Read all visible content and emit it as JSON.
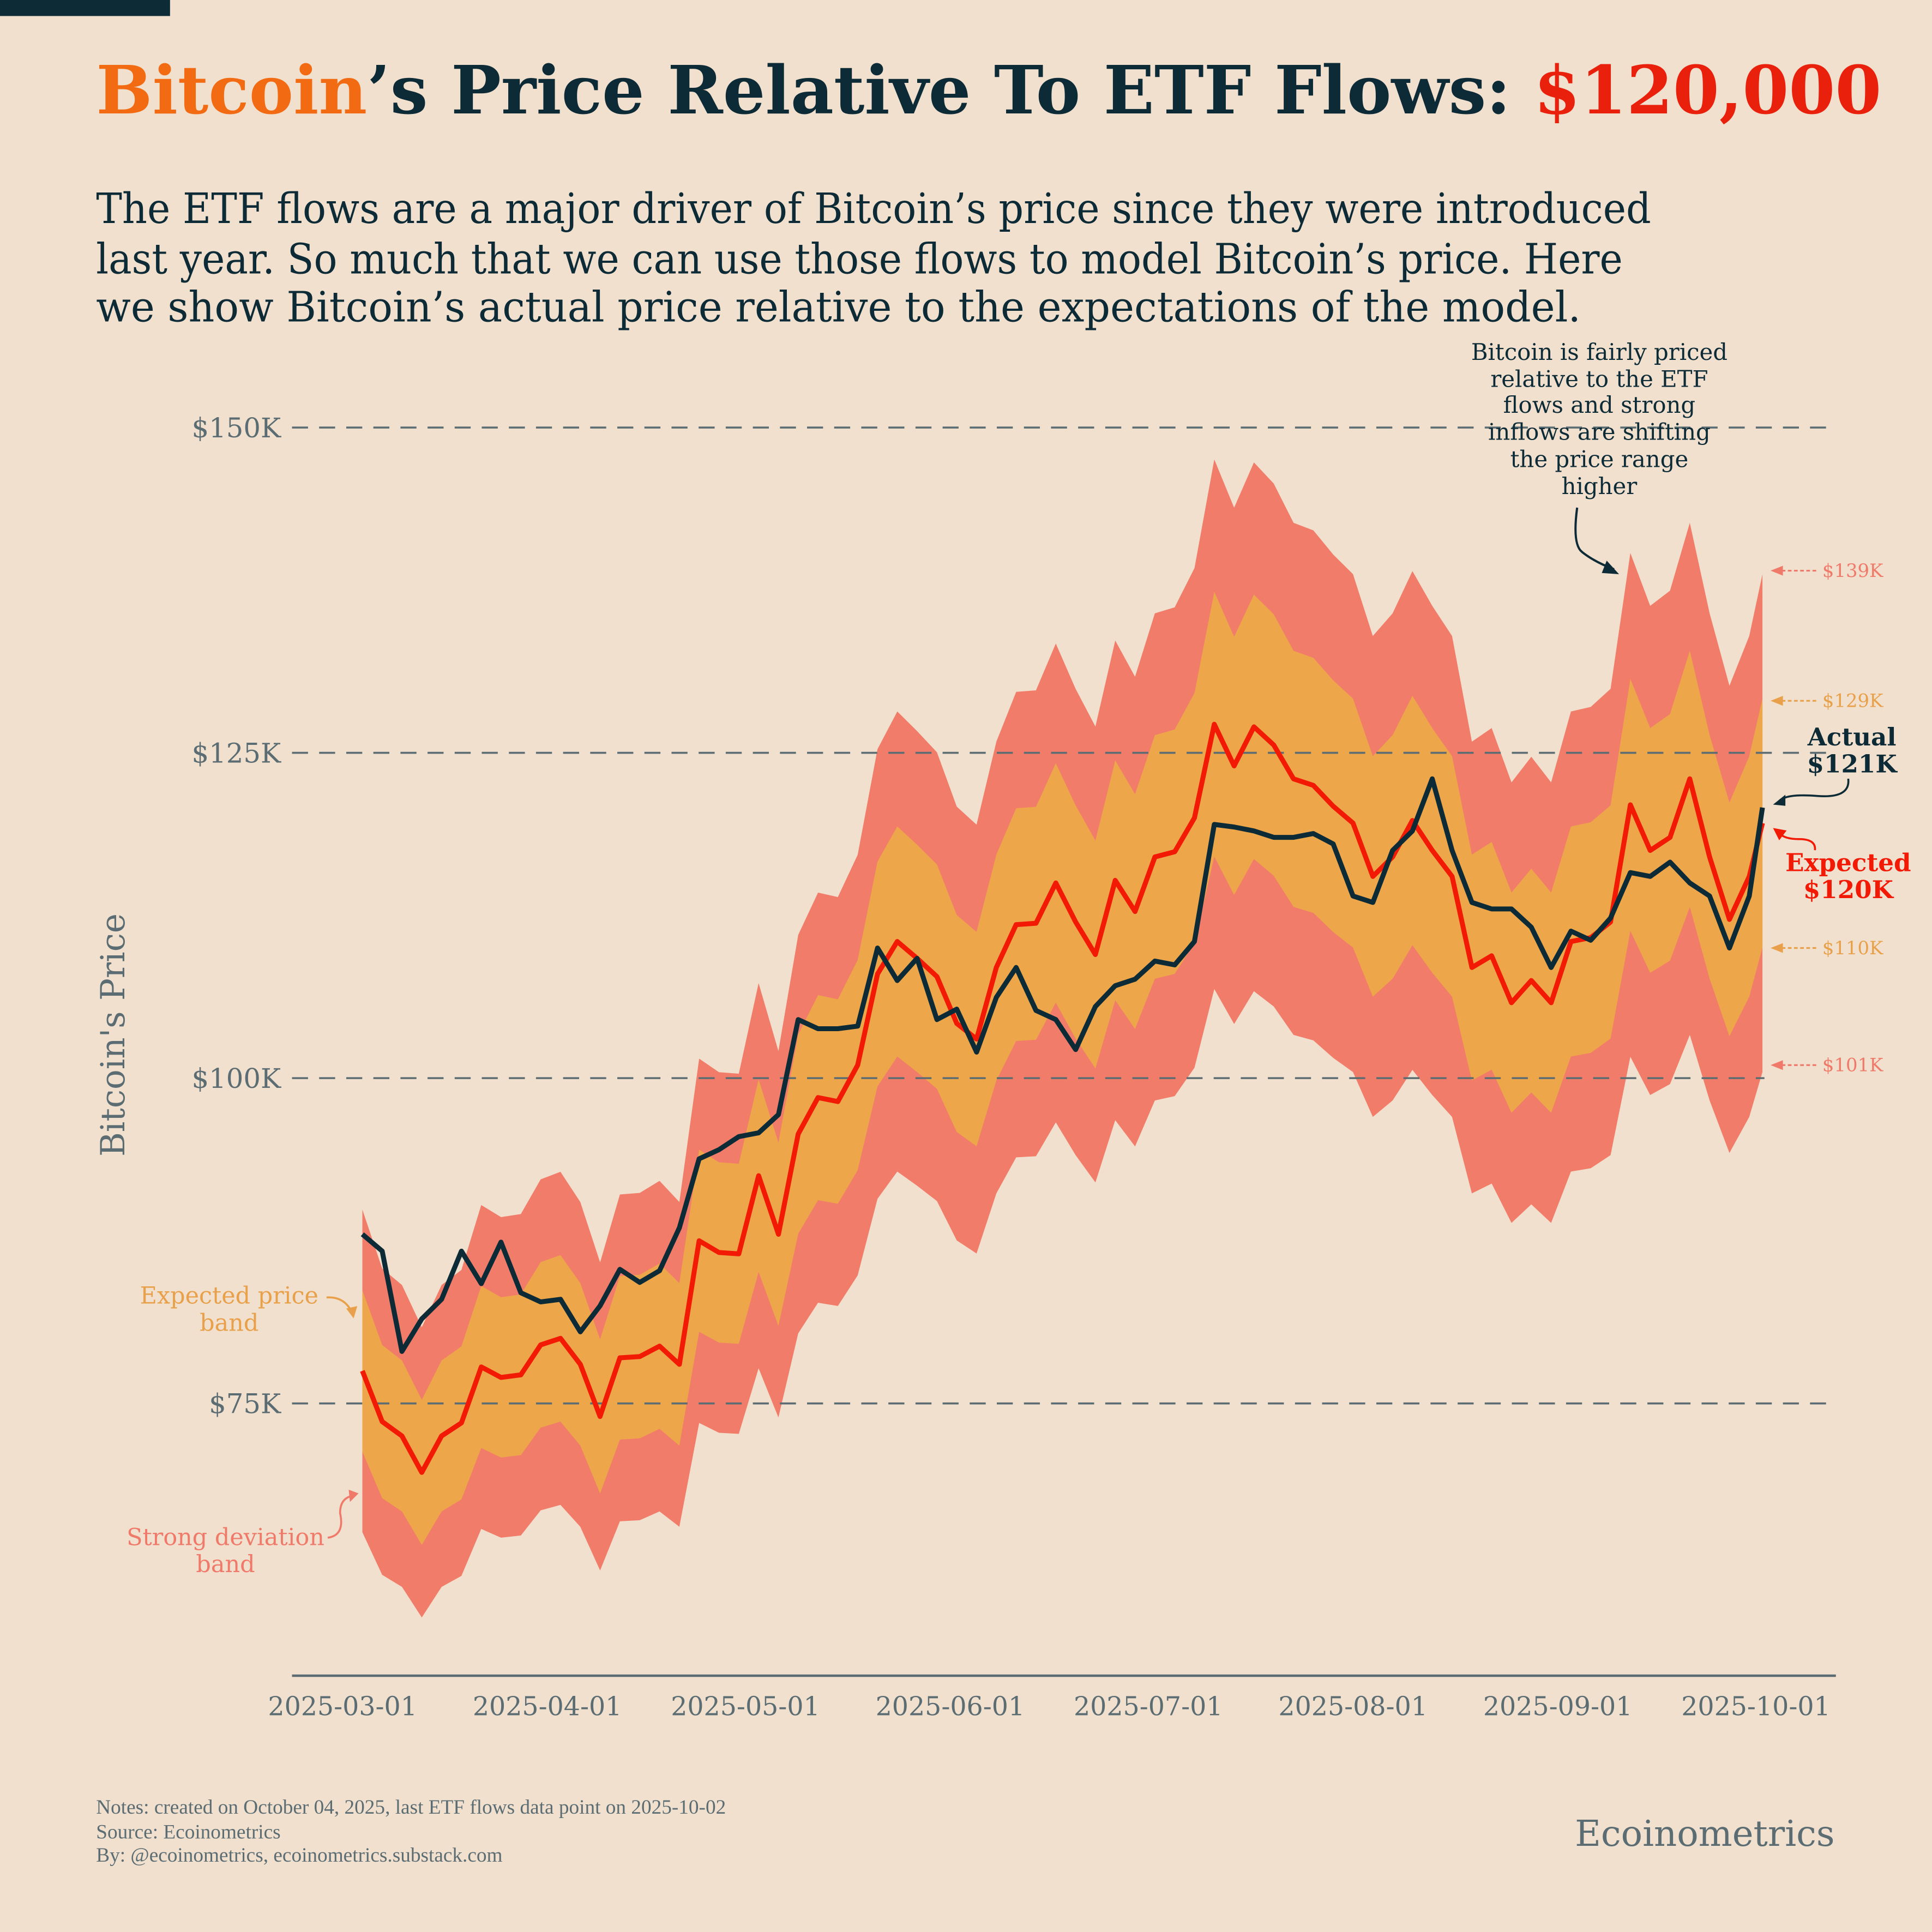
{
  "title": {
    "part1": "Bitcoin",
    "part2": "’s Price Relative To ETF Flows: ",
    "part3": "$120,000"
  },
  "subtitle": [
    "The ETF flows are a major driver of Bitcoin’s price since they were introduced",
    "last year. So much that we can use those flows to model Bitcoin’s price. Here",
    "we show Bitcoin’s actual price relative to the expectations of the model."
  ],
  "colors": {
    "background": "#f2e0cf",
    "title_bitcoin": "#f26a12",
    "title_dark": "#0d2b36",
    "title_price": "#e8200c",
    "actual": "#0d2b36",
    "expected": "#f21a05",
    "expected_band": "#eda64a",
    "strong_band": "#f27c6a",
    "axis_text": "#5b6d72"
  },
  "annotations": {
    "top": [
      "Bitcoin is fairly priced",
      "relative to the ETF",
      "flows and strong",
      "inflows are shifting",
      "the price range",
      "higher"
    ],
    "expected_band_label": [
      "Expected price",
      "band"
    ],
    "strong_band_label": [
      "Strong deviation",
      "band"
    ],
    "actual_label": [
      "Actual",
      "$121K"
    ],
    "expected_label": [
      "Expected",
      "$120K"
    ],
    "band_edges": [
      {
        "label": "$139K",
        "value": 139,
        "band": "strong"
      },
      {
        "label": "$129K",
        "value": 129,
        "band": "expected"
      },
      {
        "label": "$110K",
        "value": 110,
        "band": "expected"
      },
      {
        "label": "$101K",
        "value": 101,
        "band": "strong"
      }
    ]
  },
  "chart_data": {
    "type": "line",
    "title": "Bitcoin’s Price Relative To ETF Flows: $120,000",
    "xlabel": "",
    "ylabel": "Bitcoin's Price",
    "y_unit": "thousand USD",
    "ylim": [
      55,
      155
    ],
    "xlim": [
      "2025-02-20",
      "2025-10-13"
    ],
    "grid": "horizontal dashed",
    "y_ticks": [
      {
        "value": 75,
        "label": "$75K"
      },
      {
        "value": 100,
        "label": "$100K"
      },
      {
        "value": 125,
        "label": "$125K"
      },
      {
        "value": 150,
        "label": "$150K"
      }
    ],
    "x_ticks": [
      "2025-03-01",
      "2025-04-01",
      "2025-05-01",
      "2025-06-01",
      "2025-07-01",
      "2025-08-01",
      "2025-09-01",
      "2025-10-01"
    ],
    "bands": {
      "expected_pct": 8,
      "strong_pct": 16
    },
    "dates": [
      "2025-03-04",
      "2025-03-07",
      "2025-03-10",
      "2025-03-13",
      "2025-03-16",
      "2025-03-19",
      "2025-03-22",
      "2025-03-25",
      "2025-03-28",
      "2025-03-31",
      "2025-04-03",
      "2025-04-06",
      "2025-04-09",
      "2025-04-12",
      "2025-04-15",
      "2025-04-18",
      "2025-04-21",
      "2025-04-24",
      "2025-04-27",
      "2025-04-30",
      "2025-05-03",
      "2025-05-06",
      "2025-05-09",
      "2025-05-12",
      "2025-05-15",
      "2025-05-18",
      "2025-05-21",
      "2025-05-24",
      "2025-05-27",
      "2025-05-30",
      "2025-06-02",
      "2025-06-05",
      "2025-06-08",
      "2025-06-11",
      "2025-06-14",
      "2025-06-17",
      "2025-06-20",
      "2025-06-23",
      "2025-06-26",
      "2025-06-29",
      "2025-07-02",
      "2025-07-05",
      "2025-07-08",
      "2025-07-11",
      "2025-07-14",
      "2025-07-17",
      "2025-07-20",
      "2025-07-23",
      "2025-07-26",
      "2025-07-29",
      "2025-08-01",
      "2025-08-04",
      "2025-08-07",
      "2025-08-10",
      "2025-08-13",
      "2025-08-16",
      "2025-08-19",
      "2025-08-22",
      "2025-08-25",
      "2025-08-28",
      "2025-08-31",
      "2025-09-03",
      "2025-09-06",
      "2025-09-09",
      "2025-09-12",
      "2025-09-15",
      "2025-09-18",
      "2025-09-21",
      "2025-09-24",
      "2025-09-27",
      "2025-09-30",
      "2025-10-02"
    ],
    "series": [
      {
        "name": "Actual",
        "values": [
          88,
          86.7,
          79,
          81.5,
          83,
          86.7,
          84.2,
          87.4,
          83.5,
          82.8,
          83,
          80.5,
          82.5,
          85.3,
          84.3,
          85.2,
          88.5,
          93.8,
          94.5,
          95.5,
          95.8,
          97.2,
          104.5,
          103.8,
          103.8,
          104,
          110,
          107.5,
          109.2,
          104.5,
          105.3,
          102,
          106.2,
          108.5,
          105.2,
          104.5,
          102.2,
          105.5,
          107.1,
          107.6,
          109,
          108.7,
          110.5,
          119.5,
          119.3,
          119,
          118.5,
          118.5,
          118.8,
          118,
          114,
          113.5,
          117.5,
          119,
          123,
          117.5,
          113.5,
          113,
          113,
          111.6,
          108.5,
          111.3,
          110.6,
          112.3,
          115.8,
          115.5,
          116.6,
          115,
          114,
          110,
          114,
          120.8
        ]
      },
      {
        "name": "Expected",
        "values": [
          77.5,
          73.6,
          72.5,
          69.7,
          72.5,
          73.5,
          77.8,
          77,
          77.2,
          79.5,
          80,
          78,
          74,
          78.5,
          78.6,
          79.4,
          78,
          87.5,
          86.6,
          86.5,
          92.5,
          88,
          95.7,
          98.5,
          98.2,
          101,
          108,
          110.5,
          109.2,
          107.8,
          104.2,
          103,
          108.5,
          111.8,
          111.9,
          115,
          112,
          109.5,
          115.2,
          112.8,
          117,
          117.4,
          120,
          127.2,
          124,
          127,
          125.6,
          123,
          122.5,
          120.9,
          119.6,
          115.5,
          117,
          119.8,
          117.5,
          115.5,
          108.5,
          109.4,
          105.8,
          107.5,
          105.8,
          110.5,
          110.8,
          112,
          121,
          117.5,
          118.5,
          123,
          117,
          112.2,
          115.5,
          119.6
        ]
      }
    ]
  },
  "footer": {
    "notes": "Notes: created on October 04, 2025, last ETF flows data point on 2025-10-02",
    "source": "Source: Ecoinometrics",
    "by": "By: @ecoinometrics, ecoinometrics.substack.com",
    "brand": "Ecoinometrics"
  }
}
